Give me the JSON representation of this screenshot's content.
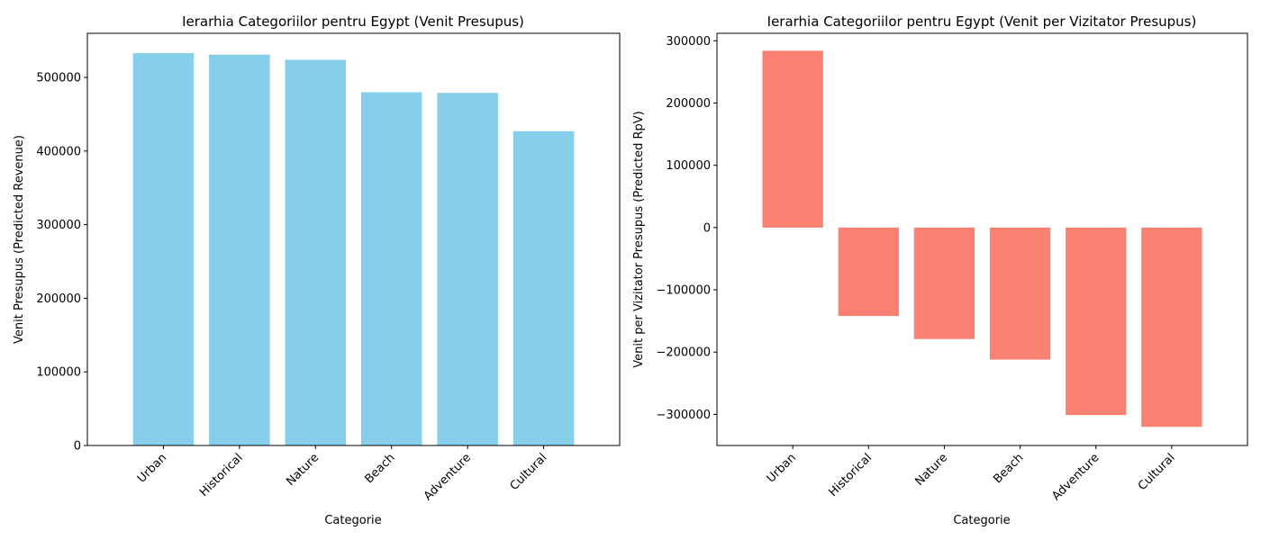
{
  "chart_data": [
    {
      "type": "bar",
      "title": "Ierarhia Categoriilor pentru Egypt (Venit Presupus)",
      "xlabel": "Categorie",
      "ylabel": "Venit Presupus (Predicted Revenue)",
      "categories": [
        "Urban",
        "Historical",
        "Nature",
        "Beach",
        "Adventure",
        "Cultural"
      ],
      "values": [
        533000,
        531000,
        524000,
        480000,
        479000,
        427000
      ],
      "ylim": [
        0,
        560000
      ],
      "yticks": [
        0,
        100000,
        200000,
        300000,
        400000,
        500000
      ],
      "ytick_labels": [
        "0",
        "100000",
        "200000",
        "300000",
        "400000",
        "500000"
      ],
      "color": "#87ceeb",
      "grid": false
    },
    {
      "type": "bar",
      "title": "Ierarhia Categoriilor pentru Egypt (Venit per Vizitator Presupus)",
      "xlabel": "Categorie",
      "ylabel": "Venit per Vizitator Presupus (Predicted RpV)",
      "categories": [
        "Urban",
        "Historical",
        "Nature",
        "Beach",
        "Adventure",
        "Cultural"
      ],
      "values": [
        284000,
        -142000,
        -179000,
        -212000,
        -301000,
        -320000
      ],
      "ylim": [
        -350000,
        312000
      ],
      "yticks": [
        -300000,
        -200000,
        -100000,
        0,
        100000,
        200000,
        300000
      ],
      "ytick_labels": [
        "−300000",
        "−200000",
        "−100000",
        "0",
        "100000",
        "200000",
        "300000"
      ],
      "color": "#fa8072",
      "grid": false
    }
  ]
}
